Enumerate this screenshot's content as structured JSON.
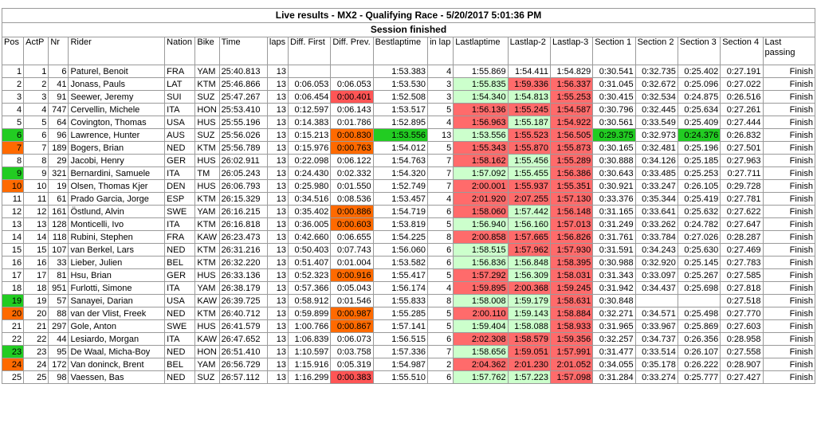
{
  "title": "Live results - MX2 - Qualifying Race - 5/20/2017 5:01:36 PM",
  "session_status": "Session finished",
  "columns": [
    "Pos",
    "ActP",
    "Nr",
    "Rider",
    "Nation",
    "Bike",
    "Time",
    "laps",
    "Diff. First",
    "Diff. Prev.",
    "Bestlaptime",
    "in lap",
    "Lastlaptime",
    "Lastlap-2",
    "Lastlap-3",
    "Section 1",
    "Section 2",
    "Section 3",
    "Section 4",
    "Last passing"
  ],
  "colors": {
    "red": "#ff6b6b",
    "green": "#ccffcc",
    "orange": "#ff6a00",
    "bright_green": "#22cc22"
  },
  "rows": [
    {
      "pos": "1",
      "actp": "1",
      "nr": "6",
      "rider": "Paturel, Benoit",
      "nation": "FRA",
      "bike": "YAM",
      "time": "25:40.813",
      "laps": "13",
      "diff_first": "",
      "diff_prev": "",
      "best": "1:53.383",
      "inlap": "4",
      "last": "1:55.869",
      "l2": "1:54.411",
      "l3": "1:54.829",
      "s1": "0:30.541",
      "s2": "0:32.735",
      "s3": "0:25.402",
      "s4": "0:27.191",
      "passing": "Finish"
    },
    {
      "pos": "2",
      "actp": "2",
      "nr": "41",
      "rider": "Jonass, Pauls",
      "nation": "LAT",
      "bike": "KTM",
      "time": "25:46.866",
      "laps": "13",
      "diff_first": "0:06.053",
      "diff_prev": "0:06.053",
      "best": "1:53.530",
      "inlap": "3",
      "last": "1:55.835",
      "l2": "1:59.336",
      "l3": "1:56.337",
      "s1": "0:31.045",
      "s2": "0:32.672",
      "s3": "0:25.096",
      "s4": "0:27.022",
      "passing": "Finish"
    },
    {
      "pos": "3",
      "actp": "3",
      "nr": "91",
      "rider": "Seewer, Jeremy",
      "nation": "SUI",
      "bike": "SUZ",
      "time": "25:47.267",
      "laps": "13",
      "diff_first": "0:06.454",
      "diff_prev": "0:00.401",
      "best": "1:52.508",
      "inlap": "3",
      "last": "1:54.340",
      "l2": "1:54.813",
      "l3": "1:55.253",
      "s1": "0:30.415",
      "s2": "0:32.534",
      "s3": "0:24.875",
      "s4": "0:26.516",
      "passing": "Finish"
    },
    {
      "pos": "4",
      "actp": "4",
      "nr": "747",
      "rider": "Cervellin, Michele",
      "nation": "ITA",
      "bike": "HON",
      "time": "25:53.410",
      "laps": "13",
      "diff_first": "0:12.597",
      "diff_prev": "0:06.143",
      "best": "1:53.517",
      "inlap": "5",
      "last": "1:56.136",
      "l2": "1:55.245",
      "l3": "1:54.587",
      "s1": "0:30.796",
      "s2": "0:32.445",
      "s3": "0:25.634",
      "s4": "0:27.261",
      "passing": "Finish"
    },
    {
      "pos": "5",
      "actp": "5",
      "nr": "64",
      "rider": "Covington, Thomas",
      "nation": "USA",
      "bike": "HUS",
      "time": "25:55.196",
      "laps": "13",
      "diff_first": "0:14.383",
      "diff_prev": "0:01.786",
      "best": "1:52.895",
      "inlap": "4",
      "last": "1:56.963",
      "l2": "1:55.187",
      "l3": "1:54.922",
      "s1": "0:30.561",
      "s2": "0:33.549",
      "s3": "0:25.409",
      "s4": "0:27.444",
      "passing": "Finish"
    },
    {
      "pos": "6",
      "actp": "6",
      "nr": "96",
      "rider": "Lawrence, Hunter",
      "nation": "AUS",
      "bike": "SUZ",
      "time": "25:56.026",
      "laps": "13",
      "diff_first": "0:15.213",
      "diff_prev": "0:00.830",
      "best": "1:53.556",
      "inlap": "13",
      "last": "1:53.556",
      "l2": "1:55.523",
      "l3": "1:56.505",
      "s1": "0:29.375",
      "s2": "0:32.973",
      "s3": "0:24.376",
      "s4": "0:26.832",
      "passing": "Finish"
    },
    {
      "pos": "7",
      "actp": "7",
      "nr": "189",
      "rider": "Bogers, Brian",
      "nation": "NED",
      "bike": "KTM",
      "time": "25:56.789",
      "laps": "13",
      "diff_first": "0:15.976",
      "diff_prev": "0:00.763",
      "best": "1:54.012",
      "inlap": "5",
      "last": "1:55.343",
      "l2": "1:55.870",
      "l3": "1:55.873",
      "s1": "0:30.165",
      "s2": "0:32.481",
      "s3": "0:25.196",
      "s4": "0:27.501",
      "passing": "Finish"
    },
    {
      "pos": "8",
      "actp": "8",
      "nr": "29",
      "rider": "Jacobi, Henry",
      "nation": "GER",
      "bike": "HUS",
      "time": "26:02.911",
      "laps": "13",
      "diff_first": "0:22.098",
      "diff_prev": "0:06.122",
      "best": "1:54.763",
      "inlap": "7",
      "last": "1:58.162",
      "l2": "1:55.456",
      "l3": "1:55.289",
      "s1": "0:30.888",
      "s2": "0:34.126",
      "s3": "0:25.185",
      "s4": "0:27.963",
      "passing": "Finish"
    },
    {
      "pos": "9",
      "actp": "9",
      "nr": "321",
      "rider": "Bernardini, Samuele",
      "nation": "ITA",
      "bike": "TM",
      "time": "26:05.243",
      "laps": "13",
      "diff_first": "0:24.430",
      "diff_prev": "0:02.332",
      "best": "1:54.320",
      "inlap": "7",
      "last": "1:57.092",
      "l2": "1:55.455",
      "l3": "1:56.386",
      "s1": "0:30.643",
      "s2": "0:33.485",
      "s3": "0:25.253",
      "s4": "0:27.711",
      "passing": "Finish"
    },
    {
      "pos": "10",
      "actp": "10",
      "nr": "19",
      "rider": "Olsen, Thomas Kjer",
      "nation": "DEN",
      "bike": "HUS",
      "time": "26:06.793",
      "laps": "13",
      "diff_first": "0:25.980",
      "diff_prev": "0:01.550",
      "best": "1:52.749",
      "inlap": "7",
      "last": "2:00.001",
      "l2": "1:55.937",
      "l3": "1:55.351",
      "s1": "0:30.921",
      "s2": "0:33.247",
      "s3": "0:26.105",
      "s4": "0:29.728",
      "passing": "Finish"
    },
    {
      "pos": "11",
      "actp": "11",
      "nr": "61",
      "rider": "Prado Garcia, Jorge",
      "nation": "ESP",
      "bike": "KTM",
      "time": "26:15.329",
      "laps": "13",
      "diff_first": "0:34.516",
      "diff_prev": "0:08.536",
      "best": "1:53.457",
      "inlap": "4",
      "last": "2:01.920",
      "l2": "2:07.255",
      "l3": "1:57.130",
      "s1": "0:33.376",
      "s2": "0:35.344",
      "s3": "0:25.419",
      "s4": "0:27.781",
      "passing": "Finish"
    },
    {
      "pos": "12",
      "actp": "12",
      "nr": "161",
      "rider": "Östlund, Alvin",
      "nation": "SWE",
      "bike": "YAM",
      "time": "26:16.215",
      "laps": "13",
      "diff_first": "0:35.402",
      "diff_prev": "0:00.886",
      "best": "1:54.719",
      "inlap": "6",
      "last": "1:58.060",
      "l2": "1:57.442",
      "l3": "1:56.148",
      "s1": "0:31.165",
      "s2": "0:33.641",
      "s3": "0:25.632",
      "s4": "0:27.622",
      "passing": "Finish"
    },
    {
      "pos": "13",
      "actp": "13",
      "nr": "128",
      "rider": "Monticelli, Ivo",
      "nation": "ITA",
      "bike": "KTM",
      "time": "26:16.818",
      "laps": "13",
      "diff_first": "0:36.005",
      "diff_prev": "0:00.603",
      "best": "1:53.819",
      "inlap": "5",
      "last": "1:56.940",
      "l2": "1:56.160",
      "l3": "1:57.013",
      "s1": "0:31.249",
      "s2": "0:33.262",
      "s3": "0:24.782",
      "s4": "0:27.647",
      "passing": "Finish"
    },
    {
      "pos": "14",
      "actp": "14",
      "nr": "118",
      "rider": "Rubini, Stephen",
      "nation": "FRA",
      "bike": "KAW",
      "time": "26:23.473",
      "laps": "13",
      "diff_first": "0:42.660",
      "diff_prev": "0:06.655",
      "best": "1:54.225",
      "inlap": "8",
      "last": "2:00.858",
      "l2": "1:57.665",
      "l3": "1:56.826",
      "s1": "0:31.761",
      "s2": "0:33.784",
      "s3": "0:27.026",
      "s4": "0:28.287",
      "passing": "Finish"
    },
    {
      "pos": "15",
      "actp": "15",
      "nr": "107",
      "rider": "van Berkel, Lars",
      "nation": "NED",
      "bike": "KTM",
      "time": "26:31.216",
      "laps": "13",
      "diff_first": "0:50.403",
      "diff_prev": "0:07.743",
      "best": "1:56.060",
      "inlap": "6",
      "last": "1:58.515",
      "l2": "1:57.962",
      "l3": "1:57.930",
      "s1": "0:31.591",
      "s2": "0:34.243",
      "s3": "0:25.630",
      "s4": "0:27.469",
      "passing": "Finish"
    },
    {
      "pos": "16",
      "actp": "16",
      "nr": "33",
      "rider": "Lieber, Julien",
      "nation": "BEL",
      "bike": "KTM",
      "time": "26:32.220",
      "laps": "13",
      "diff_first": "0:51.407",
      "diff_prev": "0:01.004",
      "best": "1:53.582",
      "inlap": "6",
      "last": "1:56.836",
      "l2": "1:56.848",
      "l3": "1:58.395",
      "s1": "0:30.988",
      "s2": "0:32.920",
      "s3": "0:25.145",
      "s4": "0:27.783",
      "passing": "Finish"
    },
    {
      "pos": "17",
      "actp": "17",
      "nr": "81",
      "rider": "Hsu, Brian",
      "nation": "GER",
      "bike": "HUS",
      "time": "26:33.136",
      "laps": "13",
      "diff_first": "0:52.323",
      "diff_prev": "0:00.916",
      "best": "1:55.417",
      "inlap": "5",
      "last": "1:57.292",
      "l2": "1:56.309",
      "l3": "1:58.031",
      "s1": "0:31.343",
      "s2": "0:33.097",
      "s3": "0:25.267",
      "s4": "0:27.585",
      "passing": "Finish"
    },
    {
      "pos": "18",
      "actp": "18",
      "nr": "951",
      "rider": "Furlotti, Simone",
      "nation": "ITA",
      "bike": "YAM",
      "time": "26:38.179",
      "laps": "13",
      "diff_first": "0:57.366",
      "diff_prev": "0:05.043",
      "best": "1:56.174",
      "inlap": "4",
      "last": "1:59.895",
      "l2": "2:00.368",
      "l3": "1:59.245",
      "s1": "0:31.942",
      "s2": "0:34.437",
      "s3": "0:25.698",
      "s4": "0:27.818",
      "passing": "Finish"
    },
    {
      "pos": "19",
      "actp": "19",
      "nr": "57",
      "rider": "Sanayei, Darian",
      "nation": "USA",
      "bike": "KAW",
      "time": "26:39.725",
      "laps": "13",
      "diff_first": "0:58.912",
      "diff_prev": "0:01.546",
      "best": "1:55.833",
      "inlap": "8",
      "last": "1:58.008",
      "l2": "1:59.179",
      "l3": "1:58.631",
      "s1": "0:30.848",
      "s2": "",
      "s3": "",
      "s4": "0:27.518",
      "passing": "Finish"
    },
    {
      "pos": "20",
      "actp": "20",
      "nr": "88",
      "rider": "van der Vlist, Freek",
      "nation": "NED",
      "bike": "KTM",
      "time": "26:40.712",
      "laps": "13",
      "diff_first": "0:59.899",
      "diff_prev": "0:00.987",
      "best": "1:55.285",
      "inlap": "5",
      "last": "2:00.110",
      "l2": "1:59.143",
      "l3": "1:58.884",
      "s1": "0:32.271",
      "s2": "0:34.571",
      "s3": "0:25.498",
      "s4": "0:27.770",
      "passing": "Finish"
    },
    {
      "pos": "21",
      "actp": "21",
      "nr": "297",
      "rider": "Gole, Anton",
      "nation": "SWE",
      "bike": "HUS",
      "time": "26:41.579",
      "laps": "13",
      "diff_first": "1:00.766",
      "diff_prev": "0:00.867",
      "best": "1:57.141",
      "inlap": "5",
      "last": "1:59.404",
      "l2": "1:58.088",
      "l3": "1:58.933",
      "s1": "0:31.965",
      "s2": "0:33.967",
      "s3": "0:25.869",
      "s4": "0:27.603",
      "passing": "Finish"
    },
    {
      "pos": "22",
      "actp": "22",
      "nr": "44",
      "rider": "Lesiardo, Morgan",
      "nation": "ITA",
      "bike": "KAW",
      "time": "26:47.652",
      "laps": "13",
      "diff_first": "1:06.839",
      "diff_prev": "0:06.073",
      "best": "1:56.515",
      "inlap": "6",
      "last": "2:02.308",
      "l2": "1:58.579",
      "l3": "1:59.356",
      "s1": "0:32.257",
      "s2": "0:34.737",
      "s3": "0:26.356",
      "s4": "0:28.958",
      "passing": "Finish"
    },
    {
      "pos": "23",
      "actp": "23",
      "nr": "95",
      "rider": "De Waal, Micha-Boy",
      "nation": "NED",
      "bike": "HON",
      "time": "26:51.410",
      "laps": "13",
      "diff_first": "1:10.597",
      "diff_prev": "0:03.758",
      "best": "1:57.336",
      "inlap": "7",
      "last": "1:58.656",
      "l2": "1:59.051",
      "l3": "1:57.991",
      "s1": "0:31.477",
      "s2": "0:33.514",
      "s3": "0:26.107",
      "s4": "0:27.558",
      "passing": "Finish"
    },
    {
      "pos": "24",
      "actp": "24",
      "nr": "172",
      "rider": "Van doninck, Brent",
      "nation": "BEL",
      "bike": "YAM",
      "time": "26:56.729",
      "laps": "13",
      "diff_first": "1:15.916",
      "diff_prev": "0:05.319",
      "best": "1:54.987",
      "inlap": "2",
      "last": "2:04.362",
      "l2": "2:01.230",
      "l3": "2:01.052",
      "s1": "0:34.055",
      "s2": "0:35.178",
      "s3": "0:26.222",
      "s4": "0:28.907",
      "passing": "Finish"
    },
    {
      "pos": "25",
      "actp": "25",
      "nr": "98",
      "rider": "Vaessen, Bas",
      "nation": "NED",
      "bike": "SUZ",
      "time": "26:57.112",
      "laps": "13",
      "diff_first": "1:16.299",
      "diff_prev": "0:00.383",
      "best": "1:55.510",
      "inlap": "6",
      "last": "1:57.762",
      "l2": "1:57.223",
      "l3": "1:57.098",
      "s1": "0:31.284",
      "s2": "0:33.274",
      "s3": "0:25.777",
      "s4": "0:27.427",
      "passing": "Finish"
    }
  ]
}
